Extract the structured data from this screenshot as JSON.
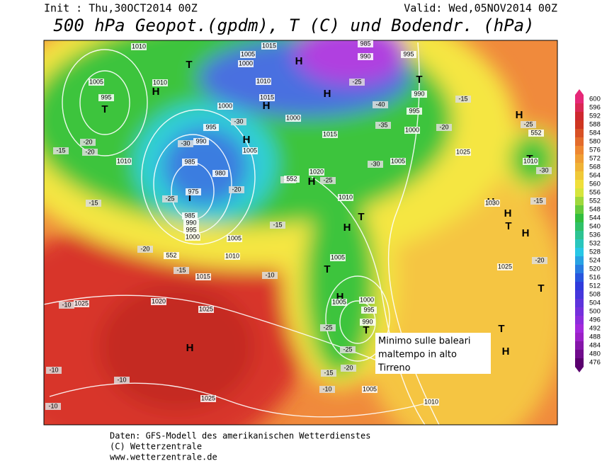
{
  "header": {
    "init": "Init : Thu,30OCT2014 00Z",
    "valid": "Valid: Wed,05NOV2014 00Z",
    "title": "500 hPa Geopot.(gpdm), T (C) und Bodendr. (hPa)"
  },
  "colorbar": {
    "values": [
      600,
      596,
      592,
      588,
      584,
      580,
      576,
      572,
      568,
      564,
      560,
      556,
      552,
      548,
      544,
      540,
      536,
      532,
      528,
      524,
      520,
      516,
      512,
      508,
      504,
      500,
      496,
      492,
      488,
      484,
      480,
      476
    ]
  },
  "annotation": {
    "lines": [
      "Minimo sulle baleari",
      "maltempo in alto",
      "Tirreno"
    ]
  },
  "footer": {
    "lines": [
      "Daten: GFS-Modell des amerikanischen Wetterdienstes",
      "(C) Wetterzentrale",
      "www.wetterzentrale.de"
    ]
  },
  "map_labels": {
    "pressure_centers": [
      "H",
      "H",
      "H",
      "T",
      "T",
      "T",
      "T",
      "T",
      "T",
      "H",
      "H",
      "H",
      "H",
      "H",
      "T",
      "T",
      "H",
      "H",
      "T",
      "H",
      "T",
      "T",
      "H",
      "H",
      "H"
    ],
    "isobars": [
      "1010",
      "1005",
      "1015",
      "1000",
      "1005",
      "995",
      "1010",
      "1015",
      "1010",
      "1000",
      "995",
      "990",
      "985",
      "980",
      "975",
      "985",
      "990",
      "995",
      "1000",
      "1005",
      "1010",
      "1015",
      "1020",
      "1025",
      "1025",
      "1025",
      "1010",
      "1015",
      "1020",
      "1010",
      "1005",
      "1005",
      "1000",
      "995",
      "990",
      "1005",
      "1010",
      "1025",
      "1030",
      "1025",
      "1010",
      "1000",
      "995",
      "990",
      "990",
      "995",
      "985",
      "1000",
      "1005",
      "1005"
    ],
    "temperatures": [
      "-25",
      "-30",
      "-20",
      "-20",
      "-25",
      "-30",
      "-35",
      "-40",
      "-25",
      "-30",
      "-20",
      "-15",
      "-20",
      "-15",
      "-20",
      "-15",
      "-15",
      "-10",
      "-10",
      "-10",
      "-10",
      "-10",
      "-10",
      "-15",
      "-20",
      "-25",
      "-25",
      "-20",
      "-15",
      "-25",
      "-30",
      "-20",
      "-15"
    ],
    "heights": [
      "552",
      "552",
      "552"
    ]
  }
}
